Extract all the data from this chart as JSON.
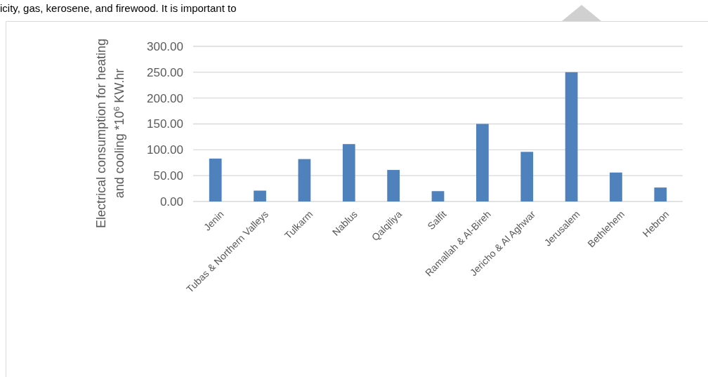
{
  "chart_data": {
    "type": "bar",
    "ylabel": "Electrical consumption for heating and cooling *10$^{6}$ KW.hr",
    "annotations": [
      "icity, gas, kerosene, and firewood. It is important to"
    ],
    "categories": [
      "Jenin",
      "Tubas & Northern Valleys",
      "Tulkarm",
      "Nablus",
      "Qalqiliya",
      "Salfit",
      "Ramallah & Al-Bireh",
      "Jericho & Al Aghwar",
      "Jerusalem",
      "Bethlehem",
      "Hebron"
    ],
    "values": [
      83,
      21,
      82,
      111,
      61,
      20,
      150,
      96,
      250,
      56,
      27
    ],
    "color": "#4f81bd",
    "ylim": [
      0,
      300
    ],
    "yticks": [
      {
        "value": 0,
        "label": "0.00"
      },
      {
        "value": 50,
        "label": "50.00"
      },
      {
        "value": 100,
        "label": "100.00"
      },
      {
        "value": 150,
        "label": "150.00"
      },
      {
        "value": 200,
        "label": "200.00"
      },
      {
        "value": 250,
        "label": "250.00"
      },
      {
        "value": 300,
        "label": "300.00"
      }
    ],
    "grid": "y"
  }
}
